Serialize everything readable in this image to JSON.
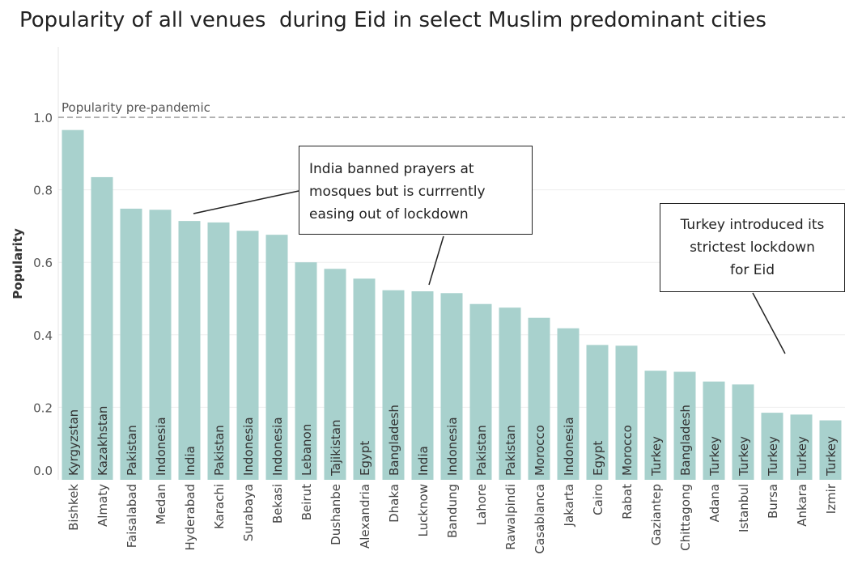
{
  "title": "Popularity of all venues  during Eid in select Muslim predominant cities",
  "colors": {
    "bar": "#a8d1cd",
    "bar_text": "#333333",
    "axis_text": "#555555",
    "reference": "#999999"
  },
  "chart_data": {
    "type": "bar",
    "title": "Popularity of all venues  during Eid in select Muslim predominant cities",
    "xlabel": "",
    "ylabel": "Popularity",
    "ylim": [
      0,
      1.2
    ],
    "yticks": [
      "0.0",
      "0.2",
      "0.4",
      "0.6",
      "0.8",
      "1.0"
    ],
    "grid": true,
    "reference_line": {
      "value": 1.0,
      "label": "Popularity pre-pandemic"
    },
    "categories": [
      "Bishkek",
      "Almaty",
      "Faisalabad",
      "Medan",
      "Hyderabad",
      "Karachi",
      "Surabaya",
      "Bekasi",
      "Beirut",
      "Dushanbe",
      "Alexandria",
      "Dhaka",
      "Lucknow",
      "Bandung",
      "Lahore",
      "Rawalpindi",
      "Casablanca",
      "Jakarta",
      "Cairo",
      "Rabat",
      "Gaziantep",
      "Chittagong",
      "Adana",
      "Istanbul",
      "Bursa",
      "Ankara",
      "Izmir"
    ],
    "countries": [
      "Kyrgyzstan",
      "Kazakhstan",
      "Pakistan",
      "Indonesia",
      "India",
      "Pakistan",
      "Indonesia",
      "Indonesia",
      "Lebanon",
      "Tajikistan",
      "Egypt",
      "Bangladesh",
      "India",
      "Indonesia",
      "Pakistan",
      "Pakistan",
      "Morocco",
      "Indonesia",
      "Egypt",
      "Morocco",
      "Turkey",
      "Bangladesh",
      "Turkey",
      "Turkey",
      "Turkey",
      "Turkey",
      "Turkey"
    ],
    "values": [
      0.965,
      0.835,
      0.748,
      0.745,
      0.714,
      0.71,
      0.687,
      0.676,
      0.6,
      0.582,
      0.555,
      0.523,
      0.52,
      0.515,
      0.485,
      0.475,
      0.447,
      0.418,
      0.372,
      0.37,
      0.301,
      0.298,
      0.271,
      0.263,
      0.185,
      0.18,
      0.164
    ],
    "annotations": [
      {
        "lines": [
          "India banned prayers at",
          "mosques but is currrently",
          "easing out of lockdown"
        ]
      },
      {
        "lines": [
          "Turkey introduced its",
          "strictest lockdown",
          "for Eid"
        ]
      }
    ]
  }
}
